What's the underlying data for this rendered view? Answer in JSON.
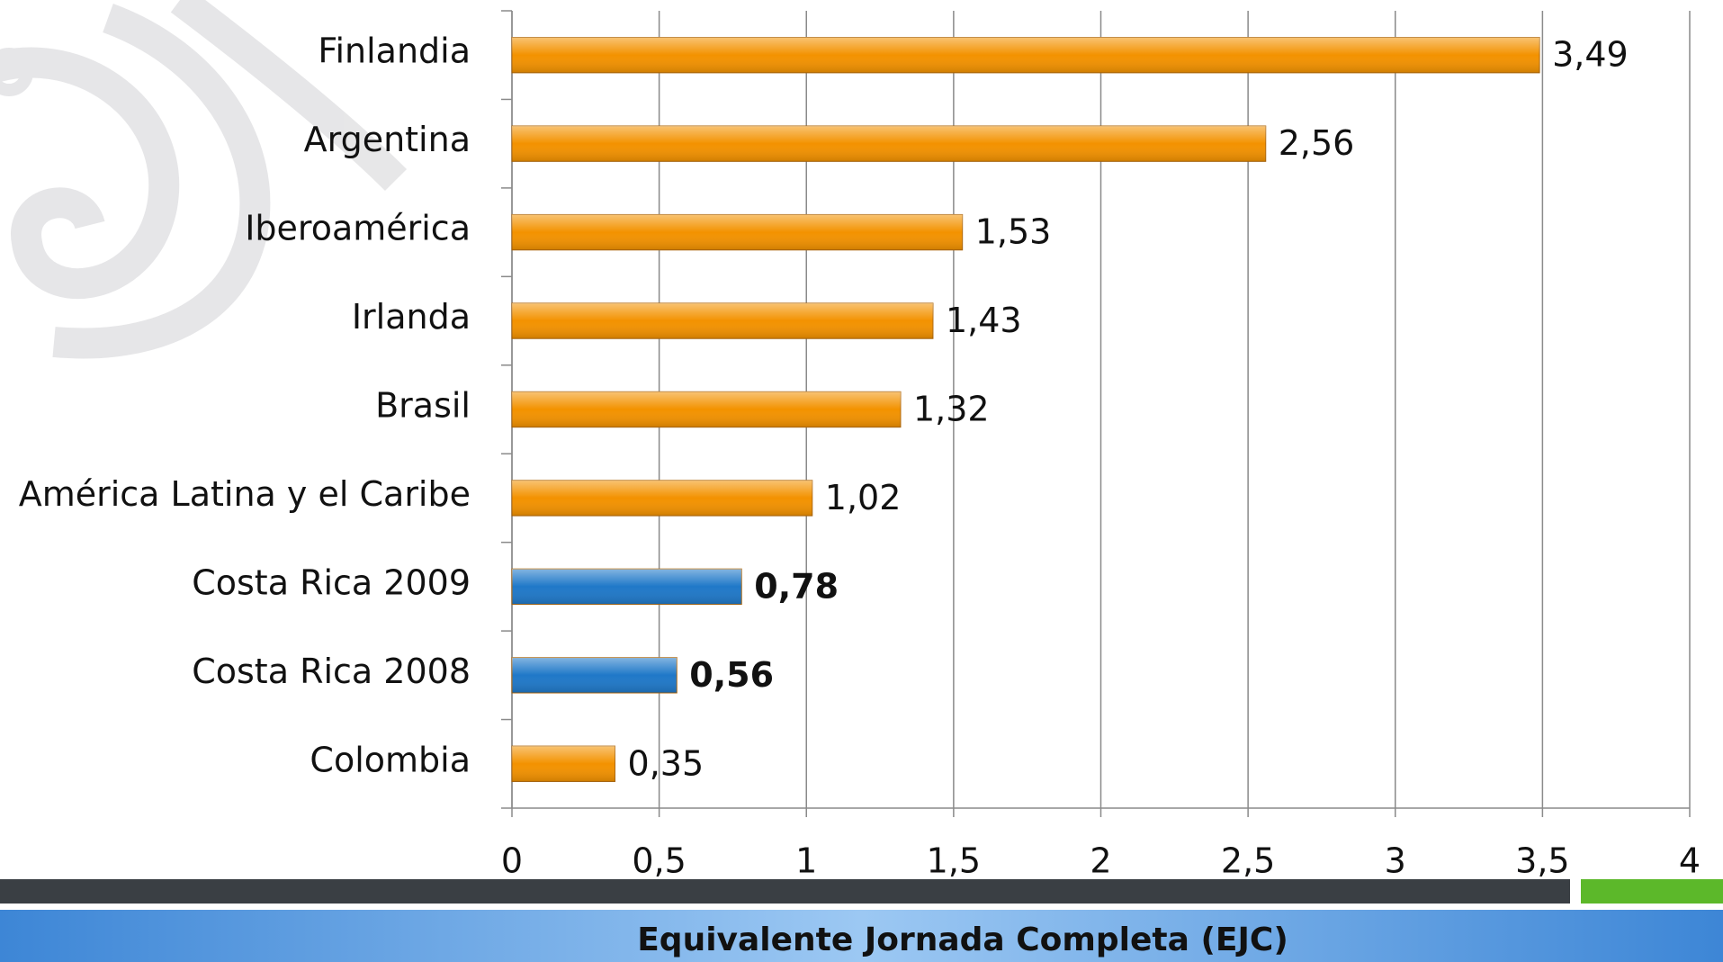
{
  "chart_data": {
    "type": "barh",
    "categories": [
      "Finlandia",
      "Argentina",
      "Iberoamérica",
      "Irlanda",
      "Brasil",
      "América Latina y el Caribe",
      "Costa Rica 2009",
      "Costa Rica 2008",
      "Colombia"
    ],
    "values": [
      3.49,
      2.56,
      1.53,
      1.43,
      1.32,
      1.02,
      0.78,
      0.56,
      0.35
    ],
    "value_labels": [
      "3,49",
      "2,56",
      "1,53",
      "1,43",
      "1,32",
      "1,02",
      "0,78",
      "0,56",
      "0,35"
    ],
    "colors": [
      "#f39200",
      "#f39200",
      "#f39200",
      "#f39200",
      "#f39200",
      "#f39200",
      "#1f78c8",
      "#1f78c8",
      "#f39200"
    ],
    "color": "#f39200",
    "xlim": [
      0,
      4
    ],
    "xticks": [
      0,
      {
        "value": 0.5,
        "label": "0,5"
      },
      1,
      {
        "value": 1.5,
        "label": "1,5"
      },
      2,
      {
        "value": 2.5,
        "label": "2,5"
      },
      3,
      {
        "value": 3.5,
        "label": "3,5"
      },
      4
    ],
    "grid": true,
    "xlabel": "Equivalente Jornada Completa (EJC)"
  }
}
